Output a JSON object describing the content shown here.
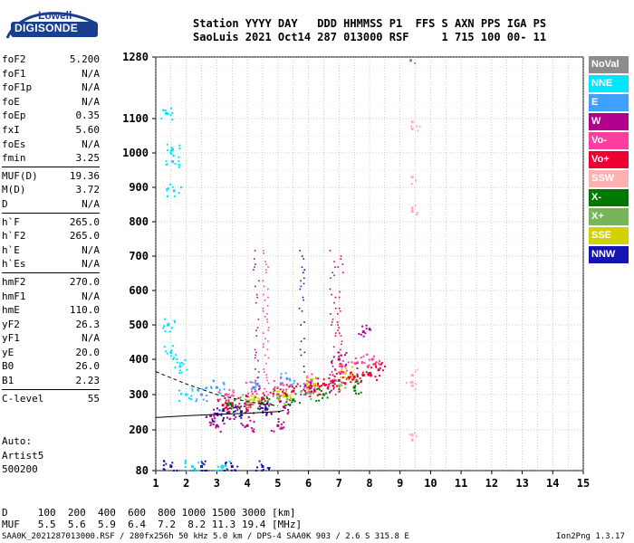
{
  "logo": {
    "top": "Lowell",
    "bottom": "DIGISONDE"
  },
  "header": {
    "line1": "Station YYYY DAY   DDD HHMMSS P1  FFS S AXN PPS IGA PS",
    "line2": "SaoLuis 2021 Oct14 287 013000 RSF     1 715 100 00- 11"
  },
  "parameters": [
    {
      "key": "foF2",
      "value": "5.200"
    },
    {
      "key": "foF1",
      "value": "N/A"
    },
    {
      "key": "foF1p",
      "value": "N/A"
    },
    {
      "key": "foE",
      "value": "N/A"
    },
    {
      "key": "foEp",
      "value": "0.35"
    },
    {
      "key": "fxI",
      "value": "5.60"
    },
    {
      "key": "foEs",
      "value": "N/A"
    },
    {
      "key": "fmin",
      "value": "3.25"
    },
    {
      "key": "MUF(D)",
      "value": "19.36"
    },
    {
      "key": "M(D)",
      "value": "3.72"
    },
    {
      "key": "D",
      "value": "N/A"
    },
    {
      "key": "h`F",
      "value": "265.0"
    },
    {
      "key": "h`F2",
      "value": "265.0"
    },
    {
      "key": "h`E",
      "value": "N/A"
    },
    {
      "key": "h`Es",
      "value": "N/A"
    },
    {
      "key": "hmF2",
      "value": "270.0"
    },
    {
      "key": "hmF1",
      "value": "N/A"
    },
    {
      "key": "hmE",
      "value": "110.0"
    },
    {
      "key": "yF2",
      "value": "26.3"
    },
    {
      "key": "yF1",
      "value": "N/A"
    },
    {
      "key": "yE",
      "value": "20.0"
    },
    {
      "key": "B0",
      "value": "26.0"
    },
    {
      "key": "B1",
      "value": "2.23"
    },
    {
      "key": "C-level",
      "value": "55"
    }
  ],
  "auto": {
    "line1": "Auto:",
    "line2": "Artist5",
    "line3": "500200"
  },
  "legend": [
    {
      "label": "NoVal",
      "color": "#8c8c8c"
    },
    {
      "label": "NNE",
      "color": "#00e6ff"
    },
    {
      "label": "E",
      "color": "#3fa0ff"
    },
    {
      "label": "W",
      "color": "#b0008c"
    },
    {
      "label": "Vo-",
      "color": "#ff3fa0"
    },
    {
      "label": "Vo+",
      "color": "#f00030"
    },
    {
      "label": "SSW",
      "color": "#ffb0b0"
    },
    {
      "label": "X-",
      "color": "#007800"
    },
    {
      "label": "X+",
      "color": "#78b45a"
    },
    {
      "label": "SSE",
      "color": "#d2d200"
    },
    {
      "label": "NNW",
      "color": "#1414b4"
    }
  ],
  "bottom": {
    "d_line": "D     100  200  400  600  800 1000 1500 3000 [km]",
    "muf_line": "MUF   5.5  5.6  5.9  6.4  7.2  8.2 11.3 19.4 [MHz]",
    "footer_left": "SAA0K_2021287013000.RSF / 280fx256h 50 kHz 5.0 km / DPS-4 SAA0K 903 / 2.6 S 315.8 E",
    "footer_right": "Ion2Png 1.3.17"
  },
  "chart_data": {
    "type": "scatter",
    "title": "",
    "xlabel": "",
    "ylabel": "",
    "xlim": [
      1,
      15
    ],
    "ylim": [
      80,
      1280
    ],
    "x_ticks": [
      "1",
      "2",
      "3",
      "4",
      "5",
      "6",
      "7",
      "8",
      "9",
      "10",
      "11",
      "12",
      "13",
      "14",
      "15"
    ],
    "y_ticks": [
      "80",
      "200",
      "300",
      "400",
      "500",
      "600",
      "700",
      "800",
      "900",
      "1000",
      "1100",
      "1280"
    ],
    "grid": true,
    "legend_position": "right",
    "series": [
      {
        "name": "Vo+",
        "points": [
          [
            3.2,
            270
          ],
          [
            3.5,
            275
          ],
          [
            4.0,
            280
          ],
          [
            4.5,
            290
          ],
          [
            5.0,
            300
          ],
          [
            5.5,
            310
          ],
          [
            6.0,
            320
          ],
          [
            6.5,
            330
          ],
          [
            7.0,
            340
          ],
          [
            7.5,
            350
          ],
          [
            8.0,
            360
          ],
          [
            8.3,
            370
          ],
          [
            6.2,
            310
          ],
          [
            6.8,
            335
          ],
          [
            7.3,
            345
          ],
          [
            7.8,
            355
          ]
        ]
      },
      {
        "name": "Vo-",
        "points": [
          [
            3.3,
            300
          ],
          [
            4.2,
            320
          ],
          [
            5.1,
            330
          ],
          [
            6.1,
            340
          ],
          [
            7.1,
            380
          ],
          [
            7.6,
            390
          ],
          [
            8.1,
            400
          ]
        ]
      },
      {
        "name": "W",
        "points": [
          [
            2.8,
            240
          ],
          [
            3.4,
            250
          ],
          [
            4.0,
            255
          ],
          [
            4.6,
            260
          ],
          [
            5.2,
            265
          ],
          [
            6.0,
            320
          ],
          [
            7.0,
            400
          ],
          [
            7.8,
            480
          ],
          [
            3.0,
            212
          ],
          [
            4.0,
            212
          ],
          [
            5.0,
            212
          ]
        ]
      },
      {
        "name": "NNW",
        "points": [
          [
            3.0,
            245
          ],
          [
            3.8,
            252
          ],
          [
            4.6,
            258
          ],
          [
            1.5,
            92
          ],
          [
            2.5,
            92
          ],
          [
            3.5,
            92
          ],
          [
            4.5,
            92
          ]
        ]
      },
      {
        "name": "X-",
        "points": [
          [
            3.5,
            268
          ],
          [
            4.5,
            275
          ],
          [
            5.5,
            285
          ],
          [
            6.5,
            300
          ],
          [
            7.5,
            320
          ]
        ]
      },
      {
        "name": "X+",
        "points": [
          [
            4.0,
            280
          ],
          [
            5.0,
            290
          ],
          [
            6.0,
            305
          ],
          [
            7.0,
            325
          ]
        ]
      },
      {
        "name": "SSE",
        "points": [
          [
            4.2,
            285
          ],
          [
            5.2,
            295
          ],
          [
            6.2,
            330
          ],
          [
            7.2,
            360
          ]
        ]
      },
      {
        "name": "NNE",
        "points": [
          [
            1.35,
            1115
          ],
          [
            1.55,
            1010
          ],
          [
            1.55,
            975
          ],
          [
            1.6,
            890
          ],
          [
            1.4,
            500
          ],
          [
            1.5,
            420
          ],
          [
            1.8,
            380
          ],
          [
            2.0,
            300
          ],
          [
            2.2,
            92
          ],
          [
            3.2,
            92
          ]
        ]
      },
      {
        "name": "E",
        "points": [
          [
            2.5,
            300
          ],
          [
            3.0,
            320
          ],
          [
            4.3,
            330
          ],
          [
            5.3,
            345
          ]
        ]
      },
      {
        "name": "SSW",
        "points": [
          [
            9.4,
            1090
          ],
          [
            9.4,
            1070
          ],
          [
            9.4,
            930
          ],
          [
            9.4,
            840
          ],
          [
            9.4,
            830
          ],
          [
            9.4,
            355
          ],
          [
            9.4,
            335
          ],
          [
            9.4,
            325
          ],
          [
            9.4,
            185
          ],
          [
            9.4,
            170
          ]
        ]
      },
      {
        "name": "NoVal",
        "points": [
          [
            9.35,
            1270
          ]
        ]
      }
    ]
  }
}
